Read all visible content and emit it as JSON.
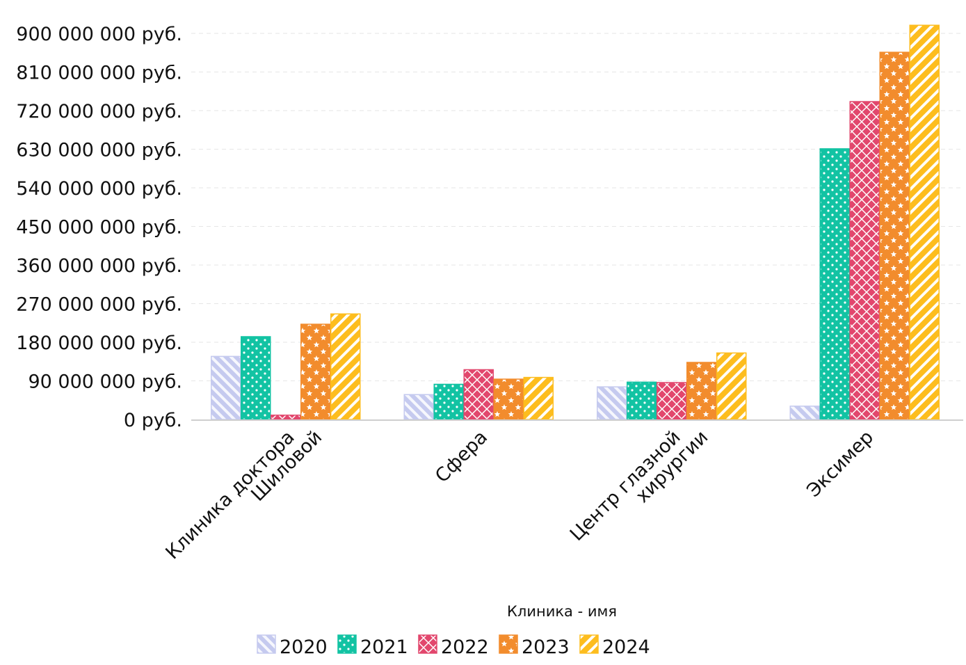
{
  "chart_data": {
    "type": "bar",
    "title": "",
    "xlabel": "Клиника - имя",
    "ylabel": "",
    "ylim": [
      0,
      900000000
    ],
    "yticks": [
      0,
      90000000,
      180000000,
      270000000,
      360000000,
      450000000,
      540000000,
      630000000,
      720000000,
      810000000,
      900000000
    ],
    "ytick_labels": [
      "0 руб.",
      "90 000 000 руб.",
      "180 000 000 руб.",
      "270 000 000 руб.",
      "360 000 000 руб.",
      "450 000 000 руб.",
      "540 000 000 руб.",
      "630 000 000 руб.",
      "720 000 000 руб.",
      "810 000 000 руб.",
      "900 000 000 руб."
    ],
    "grid": true,
    "legend_position": "bottom-center",
    "categories": [
      [
        "Клиника доктора",
        "Шиловой"
      ],
      [
        "Сфера"
      ],
      [
        "Центр глазной",
        "хирургии"
      ],
      [
        "Эксимер"
      ]
    ],
    "series": [
      {
        "name": "2020",
        "color": "#c5caef",
        "pattern": "diagonal-stripes",
        "values": [
          147000000,
          58000000,
          76000000,
          31000000
        ]
      },
      {
        "name": "2021",
        "color": "#12c3a3",
        "pattern": "dots",
        "values": [
          193000000,
          82000000,
          87000000,
          631000000
        ]
      },
      {
        "name": "2022",
        "color": "#e2476d",
        "pattern": "crosshatch",
        "values": [
          10000000,
          116000000,
          86000000,
          741000000
        ]
      },
      {
        "name": "2023",
        "color": "#f28c2d",
        "pattern": "stars",
        "values": [
          222000000,
          94000000,
          133000000,
          856000000
        ]
      },
      {
        "name": "2024",
        "color": "#fdbd1e",
        "pattern": "diagonal-stripes",
        "values": [
          246000000,
          98000000,
          155000000,
          919000000
        ]
      }
    ]
  }
}
